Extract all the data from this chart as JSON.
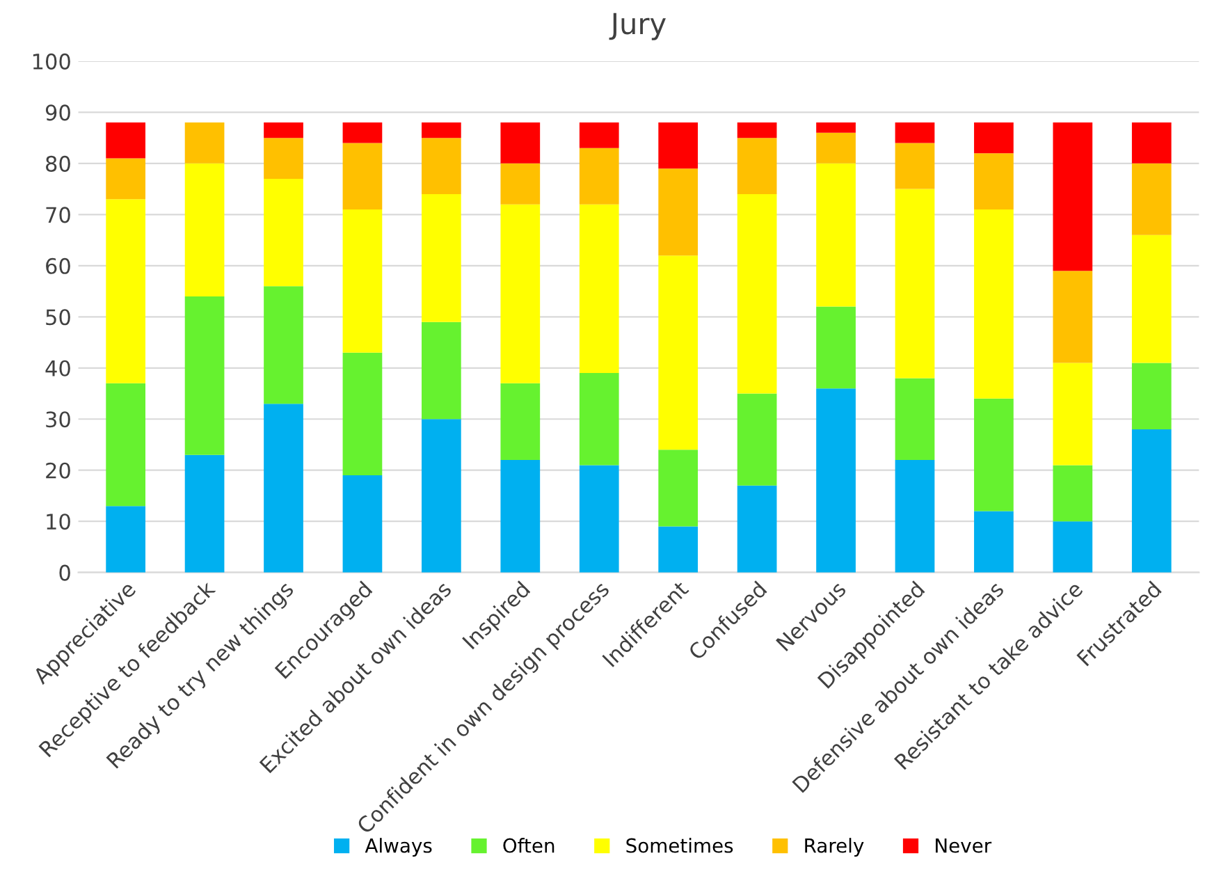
{
  "chart_data": {
    "type": "bar",
    "title": "Jury",
    "stacked": true,
    "categories": [
      "Appreciative",
      "Receptive to feedback",
      "Ready to try new things",
      "Encouraged",
      "Excited about own ideas",
      "Inspired",
      "Confident in own design process",
      "Indifferent",
      "Confused",
      "Nervous",
      "Disappointed",
      "Defensive about own ideas",
      "Resistant to take advice",
      "Frustrated"
    ],
    "series": [
      {
        "name": "Always",
        "color": "#00b0f0",
        "values": [
          13,
          23,
          33,
          19,
          30,
          22,
          21,
          9,
          17,
          36,
          22,
          12,
          10,
          28
        ]
      },
      {
        "name": "Often",
        "color": "#66f22f",
        "values": [
          24,
          31,
          23,
          24,
          19,
          15,
          18,
          15,
          18,
          16,
          16,
          22,
          11,
          13
        ]
      },
      {
        "name": "Sometimes",
        "color": "#ffff00",
        "values": [
          36,
          26,
          21,
          28,
          25,
          35,
          33,
          38,
          39,
          28,
          37,
          37,
          20,
          25
        ]
      },
      {
        "name": "Rarely",
        "color": "#ffc000",
        "values": [
          8,
          8,
          8,
          13,
          11,
          8,
          11,
          17,
          11,
          6,
          9,
          11,
          18,
          14
        ]
      },
      {
        "name": "Never",
        "color": "#ff0000",
        "values": [
          7,
          0,
          3,
          4,
          3,
          8,
          5,
          9,
          3,
          2,
          4,
          6,
          29,
          8
        ]
      }
    ],
    "ylim": [
      0,
      100
    ],
    "yticks": [
      0,
      10,
      20,
      30,
      40,
      50,
      60,
      70,
      80,
      90,
      100
    ],
    "grid": "y",
    "legend": "bottom"
  }
}
